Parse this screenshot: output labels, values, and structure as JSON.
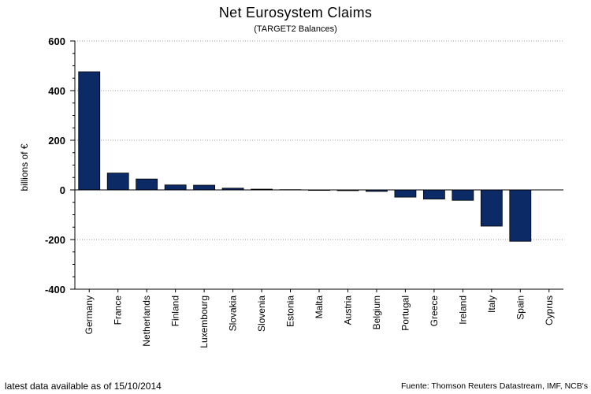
{
  "chart_data": {
    "type": "bar",
    "title": "Net Eurosystem Claims",
    "subtitle": "(TARGET2 Balances)",
    "ylabel": "billions of €",
    "xlabel": "",
    "categories": [
      "Germany",
      "France",
      "Netherlands",
      "Finland",
      "Luxembourg",
      "Slovakia",
      "Slovenia",
      "Estonia",
      "Malta",
      "Austria",
      "Belgium",
      "Portugal",
      "Greece",
      "Ireland",
      "Italy",
      "Spain",
      "Cyprus"
    ],
    "values": [
      476,
      68,
      44,
      20,
      19,
      7,
      3,
      1,
      -2,
      -3,
      -6,
      -29,
      -37,
      -42,
      -146,
      -207,
      0
    ],
    "ylim": [
      -400,
      600
    ],
    "yticks": [
      600,
      400,
      200,
      0,
      -200,
      -400
    ],
    "grid": true,
    "bar_color": "#0b2a66"
  },
  "footer": {
    "left": "latest data available as of 15/10/2014",
    "right": "Fuente: Thomson Reuters Datastream, IMF, NCB's"
  }
}
